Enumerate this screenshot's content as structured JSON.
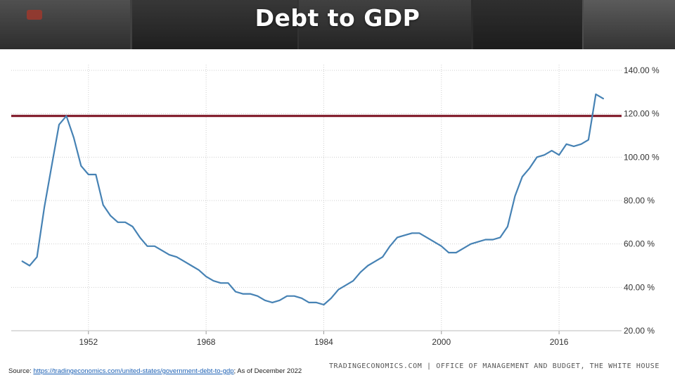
{
  "header": {
    "title": "Debt to GDP"
  },
  "chart_data": {
    "type": "line",
    "title": "Debt to GDP",
    "xlabel": "",
    "ylabel": "",
    "x_ticks": [
      "1952",
      "1968",
      "1984",
      "2000",
      "2016"
    ],
    "y_ticks": [
      "20.00 %",
      "40.00 %",
      "60.00 %",
      "80.00 %",
      "100.00 %",
      "120.00 %",
      "140.00 %"
    ],
    "xlim": [
      1941.5,
      2024.5
    ],
    "ylim": [
      20,
      140
    ],
    "grid": true,
    "reference_line": {
      "value": 119,
      "color": "#7b1020"
    },
    "series": [
      {
        "color": "#4682b4",
        "x": [
          1943,
          1944,
          1945,
          1946,
          1947,
          1948,
          1949,
          1950,
          1951,
          1952,
          1953,
          1954,
          1955,
          1956,
          1957,
          1958,
          1959,
          1960,
          1961,
          1962,
          1963,
          1964,
          1965,
          1966,
          1967,
          1968,
          1969,
          1970,
          1971,
          1972,
          1973,
          1974,
          1975,
          1976,
          1977,
          1978,
          1979,
          1980,
          1981,
          1982,
          1983,
          1984,
          1985,
          1986,
          1987,
          1988,
          1989,
          1990,
          1991,
          1992,
          1993,
          1994,
          1995,
          1996,
          1997,
          1998,
          1999,
          2000,
          2001,
          2002,
          2003,
          2004,
          2005,
          2006,
          2007,
          2008,
          2009,
          2010,
          2011,
          2012,
          2013,
          2014,
          2015,
          2016,
          2017,
          2018,
          2019,
          2020,
          2021,
          2022
        ],
        "values": [
          52,
          50,
          54,
          77,
          96,
          115,
          119,
          109,
          96,
          92,
          92,
          78,
          73,
          70,
          70,
          68,
          63,
          59,
          59,
          57,
          55,
          54,
          52,
          50,
          48,
          45,
          43,
          42,
          42,
          38,
          37,
          37,
          36,
          34,
          33,
          34,
          36,
          36,
          35,
          33,
          33,
          32,
          35,
          39,
          41,
          43,
          47,
          50,
          52,
          54,
          59,
          63,
          64,
          65,
          65,
          63,
          61,
          59,
          56,
          56,
          58,
          60,
          61,
          62,
          62,
          63,
          68,
          82,
          91,
          95,
          100,
          101,
          103,
          101,
          106,
          105,
          106,
          108,
          129,
          127
        ]
      }
    ]
  },
  "footer": {
    "source_prefix": "Source: ",
    "source_link": "https://tradingeconomics.com/united-states/government-debt-to-gdp",
    "source_suffix": "; As of December 2022",
    "credit": "TRADINGECONOMICS.COM | OFFICE OF MANAGEMENT AND BUDGET, THE WHITE HOUSE"
  }
}
